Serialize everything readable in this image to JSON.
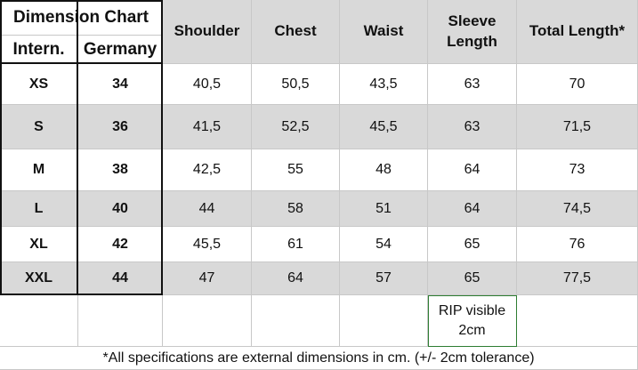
{
  "header": {
    "group_title": "Dimension Chart",
    "columns": [
      "Intern.",
      "Germany",
      "Shoulder",
      "Chest",
      "Waist",
      "Sleeve Length",
      "Total Length*"
    ]
  },
  "rows": [
    [
      "XS",
      "34",
      "40,5",
      "50,5",
      "43,5",
      "63",
      "70"
    ],
    [
      "S",
      "36",
      "41,5",
      "52,5",
      "45,5",
      "63",
      "71,5"
    ],
    [
      "M",
      "38",
      "42,5",
      "55",
      "48",
      "64",
      "73"
    ],
    [
      "L",
      "40",
      "44",
      "58",
      "51",
      "64",
      "74,5"
    ],
    [
      "XL",
      "42",
      "45,5",
      "61",
      "54",
      "65",
      "76"
    ],
    [
      "XXL",
      "44",
      "47",
      "64",
      "57",
      "65",
      "77,5"
    ]
  ],
  "note": "RIP visible 2cm",
  "footer": "*All specifications are external dimensions in cm. (+/- 2cm tolerance)"
}
